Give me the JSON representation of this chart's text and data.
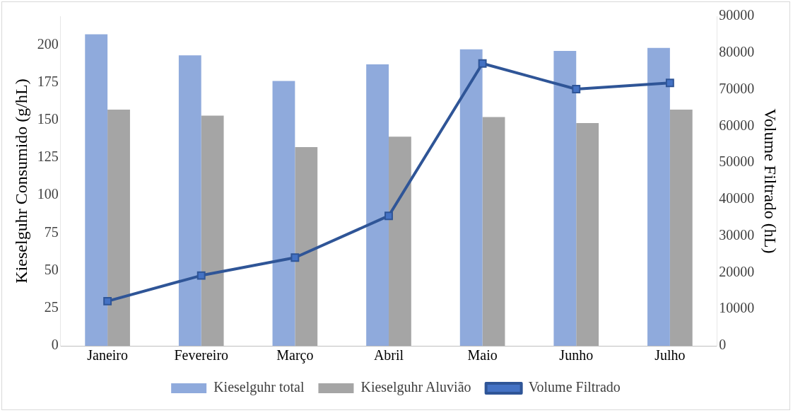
{
  "chart_data": {
    "type": "bar",
    "ylabel": "Kieselguhr Consumido (g/hL)",
    "y2label": "Volume Filtrado (hL)",
    "categories": [
      "Janeiro",
      "Fevereiro",
      "Março",
      "Abril",
      "Maio",
      "Junho",
      "Julho"
    ],
    "series": [
      {
        "name": "Kieselguhr total",
        "color": "#8faadc",
        "values": [
          207,
          193,
          176,
          187,
          197,
          196,
          198
        ]
      },
      {
        "name": "Kieselguhr Aluvião",
        "color": "#a5a5a5",
        "values": [
          157,
          153,
          132,
          139,
          152,
          148,
          157
        ]
      },
      {
        "name": "Volume Filtrado",
        "type": "line",
        "axis": "y2",
        "color": "#2f5597",
        "values": [
          12200,
          19200,
          24100,
          35500,
          77100,
          70100,
          71800
        ]
      }
    ],
    "ylim": [
      0,
      219
    ],
    "yticks": [
      0,
      25,
      50,
      75,
      100,
      125,
      150,
      175,
      200
    ],
    "y2lim": [
      0,
      90000
    ],
    "y2ticks": [
      0,
      10000,
      20000,
      30000,
      40000,
      50000,
      60000,
      70000,
      80000,
      90000
    ],
    "grid": false,
    "legend": "bottom",
    "marker": "square"
  }
}
